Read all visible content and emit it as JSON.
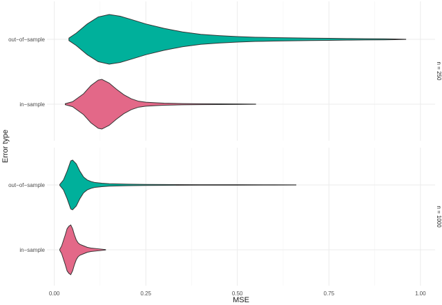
{
  "chart_data": {
    "type": "violin",
    "xlabel": "MSE",
    "ylabel": "Error type",
    "xlim": [
      -0.02,
      1.04
    ],
    "x_ticks": [
      0,
      0.25,
      0.5,
      0.75,
      1
    ],
    "x_tick_labels": [
      "0.00",
      "0.25",
      "0.50",
      "0.75",
      "1.00"
    ],
    "grid": true,
    "colors": {
      "out-of-sample": "#00b09b",
      "in-sample": "#e36888"
    },
    "panels": [
      {
        "label": "n = 250",
        "categories": [
          "out−of−sample",
          "in−sample"
        ],
        "violins": [
          {
            "group": "out-of-sample",
            "density": [
              [
                0.04,
                0.05
              ],
              [
                0.06,
                0.25
              ],
              [
                0.09,
                0.62
              ],
              [
                0.12,
                0.9
              ],
              [
                0.15,
                1.0
              ],
              [
                0.18,
                0.93
              ],
              [
                0.21,
                0.8
              ],
              [
                0.25,
                0.62
              ],
              [
                0.3,
                0.44
              ],
              [
                0.35,
                0.3
              ],
              [
                0.4,
                0.2
              ],
              [
                0.45,
                0.15
              ],
              [
                0.5,
                0.11
              ],
              [
                0.55,
                0.085
              ],
              [
                0.6,
                0.07
              ],
              [
                0.65,
                0.06
              ],
              [
                0.7,
                0.05
              ],
              [
                0.75,
                0.04
              ],
              [
                0.8,
                0.032
              ],
              [
                0.85,
                0.025
              ],
              [
                0.9,
                0.02
              ],
              [
                0.93,
                0.015
              ],
              [
                0.96,
                0.004
              ]
            ]
          },
          {
            "group": "in-sample",
            "density": [
              [
                0.03,
                0.02
              ],
              [
                0.05,
                0.1
              ],
              [
                0.08,
                0.42
              ],
              [
                0.1,
                0.75
              ],
              [
                0.12,
                0.97
              ],
              [
                0.13,
                1.0
              ],
              [
                0.15,
                0.85
              ],
              [
                0.17,
                0.6
              ],
              [
                0.19,
                0.38
              ],
              [
                0.21,
                0.22
              ],
              [
                0.23,
                0.12
              ],
              [
                0.25,
                0.08
              ],
              [
                0.28,
                0.055
              ],
              [
                0.3,
                0.04
              ],
              [
                0.35,
                0.025
              ],
              [
                0.4,
                0.018
              ],
              [
                0.45,
                0.015
              ],
              [
                0.5,
                0.012
              ],
              [
                0.55,
                0.004
              ]
            ]
          }
        ]
      },
      {
        "label": "n = 1000",
        "categories": [
          "out−of−sample",
          "in−sample"
        ],
        "violins": [
          {
            "group": "out-of-sample",
            "density": [
              [
                0.015,
                0.02
              ],
              [
                0.025,
                0.2
              ],
              [
                0.035,
                0.55
              ],
              [
                0.045,
                0.97
              ],
              [
                0.05,
                1.0
              ],
              [
                0.06,
                0.85
              ],
              [
                0.07,
                0.55
              ],
              [
                0.08,
                0.32
              ],
              [
                0.09,
                0.2
              ],
              [
                0.1,
                0.14
              ],
              [
                0.11,
                0.1
              ],
              [
                0.13,
                0.07
              ],
              [
                0.15,
                0.05
              ],
              [
                0.17,
                0.04
              ],
              [
                0.2,
                0.03
              ],
              [
                0.25,
                0.022
              ],
              [
                0.3,
                0.016
              ],
              [
                0.4,
                0.011
              ],
              [
                0.5,
                0.009
              ],
              [
                0.6,
                0.007
              ],
              [
                0.66,
                0.003
              ]
            ]
          },
          {
            "group": "in-sample",
            "density": [
              [
                0.015,
                0.02
              ],
              [
                0.02,
                0.15
              ],
              [
                0.03,
                0.6
              ],
              [
                0.035,
                0.85
              ],
              [
                0.04,
                0.95
              ],
              [
                0.045,
                1.0
              ],
              [
                0.05,
                0.85
              ],
              [
                0.055,
                0.6
              ],
              [
                0.06,
                0.4
              ],
              [
                0.065,
                0.28
              ],
              [
                0.07,
                0.22
              ],
              [
                0.08,
                0.16
              ],
              [
                0.09,
                0.1
              ],
              [
                0.1,
                0.07
              ],
              [
                0.12,
                0.04
              ],
              [
                0.14,
                0.01
              ]
            ]
          }
        ]
      }
    ]
  }
}
